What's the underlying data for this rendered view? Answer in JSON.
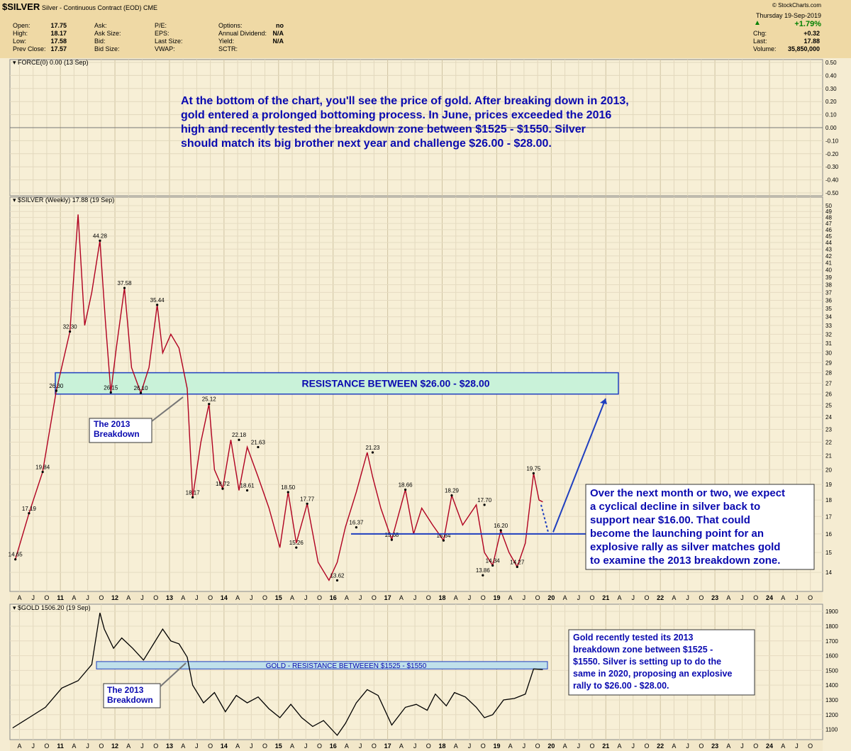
{
  "header": {
    "symbol": "$SILVER",
    "description": "Silver - Continuous Contract (EOD) CME",
    "credit": "© StockCharts.com",
    "date_line": "Thursday 19-Sep-2019",
    "change_arrow": "▲",
    "change_pct": "+1.79%",
    "quote_labels": [
      "Open:",
      "High:",
      "Low:",
      "Prev Close:"
    ],
    "quote_values": [
      "17.75",
      "18.17",
      "17.58",
      "17.57"
    ],
    "col2_labels": [
      "Ask:",
      "Ask Size:",
      "Bid:",
      "Bid Size:"
    ],
    "col3_labels": [
      "P/E:",
      "EPS:",
      "Last Size:",
      "VWAP:"
    ],
    "col4_labels": [
      "Options:",
      "Annual Dividend:",
      "Yield:",
      "SCTR:"
    ],
    "col4_values": [
      "no",
      "N/A",
      "N/A",
      ""
    ],
    "right_labels": [
      "Chg:",
      "Last:",
      "Volume:"
    ],
    "right_values": [
      "+0.32",
      "17.88",
      "35,850,000"
    ]
  },
  "panels": {
    "force_label": "FORCE(0) 0.00 (13 Sep)",
    "silver_label": "$SILVER (Weekly) 17.88 (19 Sep)",
    "gold_label": "$GOLD 1506.20 (19 Sep)"
  },
  "annotations": {
    "main_text": [
      "At the bottom of the chart, you'll see the price of gold. After breaking down in 2013,",
      "gold entered a prolonged bottoming process. In June, prices exceeded the 2016",
      "high and recently tested the breakdown zone between $1525 - $1550. Silver",
      "should match its big brother next year and challenge $26.00 - $28.00."
    ],
    "resistance_box": "RESISTANCE BETWEEN $26.00 - $28.00",
    "breakdown_silver": [
      "The 2013",
      "Breakdown"
    ],
    "breakdown_gold": [
      "The 2013",
      "Breakdown"
    ],
    "right_note": [
      "Over the next month or two, we expect",
      "a cyclical decline in silver back to",
      "support near $16.00. That could",
      "become the launching point for an",
      "explosive rally as silver matches gold",
      "to examine the 2013 breakdown zone."
    ],
    "gold_resistance": "GOLD - RESISTANCE BETWEEEN $1525 - $1550",
    "gold_note": [
      "Gold recently tested its 2013",
      "breakdown zone between $1525 -",
      "$1550. Silver is setting up to do the",
      "same in 2020, proposing an explosive",
      "rally to $26.00 - $28.00."
    ]
  },
  "chart_data": [
    {
      "type": "line",
      "name": "FORCE(0)",
      "y_ticks": [
        "0.50",
        "0.40",
        "0.30",
        "0.20",
        "0.10",
        "0.00",
        "-0.10",
        "-0.20",
        "-0.30",
        "-0.40",
        "-0.50"
      ],
      "ylim": [
        -0.5,
        0.5
      ],
      "values": [
        0.0
      ]
    },
    {
      "type": "line",
      "name": "$SILVER (Weekly)",
      "ylim": [
        13.3,
        50.5
      ],
      "log_scale": true,
      "y_ticks": [
        14,
        15,
        16,
        17,
        18,
        19,
        20,
        21,
        22,
        23,
        24,
        25,
        26,
        27,
        28,
        29,
        30,
        31,
        32,
        33,
        34,
        35,
        36,
        37,
        38,
        39,
        40,
        41,
        42,
        43,
        44,
        45,
        46,
        47,
        48,
        49,
        50
      ],
      "x_labels": [
        "A",
        "J",
        "O",
        "11",
        "A",
        "J",
        "O",
        "12",
        "A",
        "J",
        "O",
        "13",
        "A",
        "J",
        "O",
        "14",
        "A",
        "J",
        "O",
        "15",
        "A",
        "J",
        "O",
        "16",
        "A",
        "J",
        "O",
        "17",
        "A",
        "J",
        "O",
        "18",
        "A",
        "J",
        "O",
        "19",
        "A",
        "J",
        "O",
        "20",
        "A",
        "J",
        "O",
        "21",
        "A",
        "J",
        "O",
        "22",
        "A",
        "J",
        "O",
        "23",
        "A",
        "J",
        "O",
        "24",
        "A",
        "J",
        "O"
      ],
      "x": [
        2010.05,
        2010.3,
        2010.55,
        2010.8,
        2011.05,
        2011.2,
        2011.32,
        2011.45,
        2011.6,
        2011.7,
        2011.8,
        2011.9,
        2012.05,
        2012.18,
        2012.35,
        2012.5,
        2012.65,
        2012.75,
        2012.9,
        2013.05,
        2013.2,
        2013.3,
        2013.45,
        2013.6,
        2013.7,
        2013.85,
        2014.0,
        2014.15,
        2014.3,
        2014.5,
        2014.7,
        2014.9,
        2015.05,
        2015.2,
        2015.4,
        2015.6,
        2015.8,
        2015.95,
        2016.1,
        2016.3,
        2016.5,
        2016.6,
        2016.75,
        2016.95,
        2017.2,
        2017.35,
        2017.5,
        2017.7,
        2017.9,
        2018.05,
        2018.25,
        2018.5,
        2018.65,
        2018.8,
        2018.95,
        2019.1,
        2019.25,
        2019.4,
        2019.55,
        2019.65,
        2019.72
      ],
      "values": [
        14.65,
        17.19,
        19.84,
        26.3,
        32.3,
        48.5,
        33.0,
        37.0,
        44.28,
        33.5,
        26.15,
        30.5,
        37.58,
        28.5,
        26.1,
        28.5,
        35.44,
        30.0,
        32.0,
        30.5,
        26.5,
        18.17,
        22.0,
        25.12,
        20.0,
        18.72,
        22.18,
        18.61,
        21.63,
        19.5,
        17.5,
        15.26,
        18.5,
        15.5,
        17.77,
        14.5,
        13.62,
        14.5,
        16.37,
        18.5,
        21.23,
        19.5,
        17.5,
        15.68,
        18.66,
        16.0,
        17.5,
        16.5,
        15.64,
        18.29,
        16.5,
        17.7,
        15.0,
        14.34,
        16.2,
        15.0,
        14.27,
        15.5,
        19.75,
        18.0,
        17.88
      ],
      "points_labeled": [
        {
          "x": 2010.05,
          "y": 14.65,
          "label": "14.65"
        },
        {
          "x": 2010.3,
          "y": 17.19,
          "label": "17.19"
        },
        {
          "x": 2010.55,
          "y": 19.84,
          "label": "19.84"
        },
        {
          "x": 2010.8,
          "y": 26.3,
          "label": "26.30"
        },
        {
          "x": 2011.05,
          "y": 32.3,
          "label": "32.30"
        },
        {
          "x": 2011.6,
          "y": 44.28,
          "label": "44.28"
        },
        {
          "x": 2011.8,
          "y": 26.15,
          "label": "26.15"
        },
        {
          "x": 2012.05,
          "y": 37.58,
          "label": "37.58"
        },
        {
          "x": 2012.35,
          "y": 26.1,
          "label": "26.10"
        },
        {
          "x": 2012.65,
          "y": 35.44,
          "label": "35.44"
        },
        {
          "x": 2013.3,
          "y": 18.17,
          "label": "18.17"
        },
        {
          "x": 2013.6,
          "y": 25.12,
          "label": "25.12"
        },
        {
          "x": 2013.85,
          "y": 18.72,
          "label": "18.72"
        },
        {
          "x": 2014.15,
          "y": 22.18,
          "label": "22.18"
        },
        {
          "x": 2014.3,
          "y": 18.61,
          "label": "18.61"
        },
        {
          "x": 2014.5,
          "y": 21.63,
          "label": "21.63"
        },
        {
          "x": 2015.05,
          "y": 18.5,
          "label": "18.50"
        },
        {
          "x": 2015.2,
          "y": 15.26,
          "label": "15.26"
        },
        {
          "x": 2015.4,
          "y": 17.77,
          "label": "17.77"
        },
        {
          "x": 2015.95,
          "y": 13.62,
          "label": "13.62"
        },
        {
          "x": 2016.3,
          "y": 16.37,
          "label": "16.37"
        },
        {
          "x": 2016.6,
          "y": 21.23,
          "label": "21.23"
        },
        {
          "x": 2016.95,
          "y": 15.68,
          "label": "15.68"
        },
        {
          "x": 2017.2,
          "y": 18.66,
          "label": "18.66"
        },
        {
          "x": 2017.9,
          "y": 15.64,
          "label": "15.64"
        },
        {
          "x": 2018.05,
          "y": 18.29,
          "label": "18.29"
        },
        {
          "x": 2018.65,
          "y": 17.7,
          "label": "17.70"
        },
        {
          "x": 2018.8,
          "y": 14.34,
          "label": "14.34"
        },
        {
          "x": 2018.95,
          "y": 16.2,
          "label": "16.20"
        },
        {
          "x": 2019.25,
          "y": 14.27,
          "label": "14.27"
        },
        {
          "x": 2019.55,
          "y": 19.75,
          "label": "19.75"
        },
        {
          "x": 2018.62,
          "y": 13.86,
          "label": "13.86"
        }
      ],
      "resistance_zone": [
        26.0,
        28.0
      ],
      "support_level": 16.0
    },
    {
      "type": "line",
      "name": "$GOLD",
      "ylim": [
        1050,
        1920
      ],
      "y_ticks": [
        1100,
        1200,
        1300,
        1400,
        1500,
        1600,
        1700,
        1800,
        1900
      ],
      "x": [
        2010.0,
        2010.3,
        2010.6,
        2010.9,
        2011.2,
        2011.45,
        2011.6,
        2011.68,
        2011.85,
        2012.0,
        2012.2,
        2012.4,
        2012.6,
        2012.75,
        2012.9,
        2013.05,
        2013.2,
        2013.3,
        2013.5,
        2013.7,
        2013.9,
        2014.1,
        2014.3,
        2014.5,
        2014.7,
        2014.9,
        2015.1,
        2015.3,
        2015.5,
        2015.7,
        2015.95,
        2016.1,
        2016.3,
        2016.5,
        2016.7,
        2016.95,
        2017.2,
        2017.4,
        2017.6,
        2017.75,
        2017.95,
        2018.1,
        2018.3,
        2018.5,
        2018.65,
        2018.8,
        2019.0,
        2019.2,
        2019.4,
        2019.55,
        2019.72
      ],
      "values": [
        1110,
        1180,
        1250,
        1380,
        1430,
        1540,
        1890,
        1780,
        1650,
        1720,
        1650,
        1570,
        1690,
        1780,
        1700,
        1680,
        1590,
        1400,
        1280,
        1350,
        1220,
        1330,
        1280,
        1320,
        1240,
        1180,
        1270,
        1180,
        1120,
        1160,
        1060,
        1140,
        1280,
        1370,
        1330,
        1130,
        1250,
        1270,
        1230,
        1340,
        1260,
        1350,
        1320,
        1250,
        1180,
        1200,
        1300,
        1310,
        1340,
        1510,
        1506
      ]
    }
  ]
}
